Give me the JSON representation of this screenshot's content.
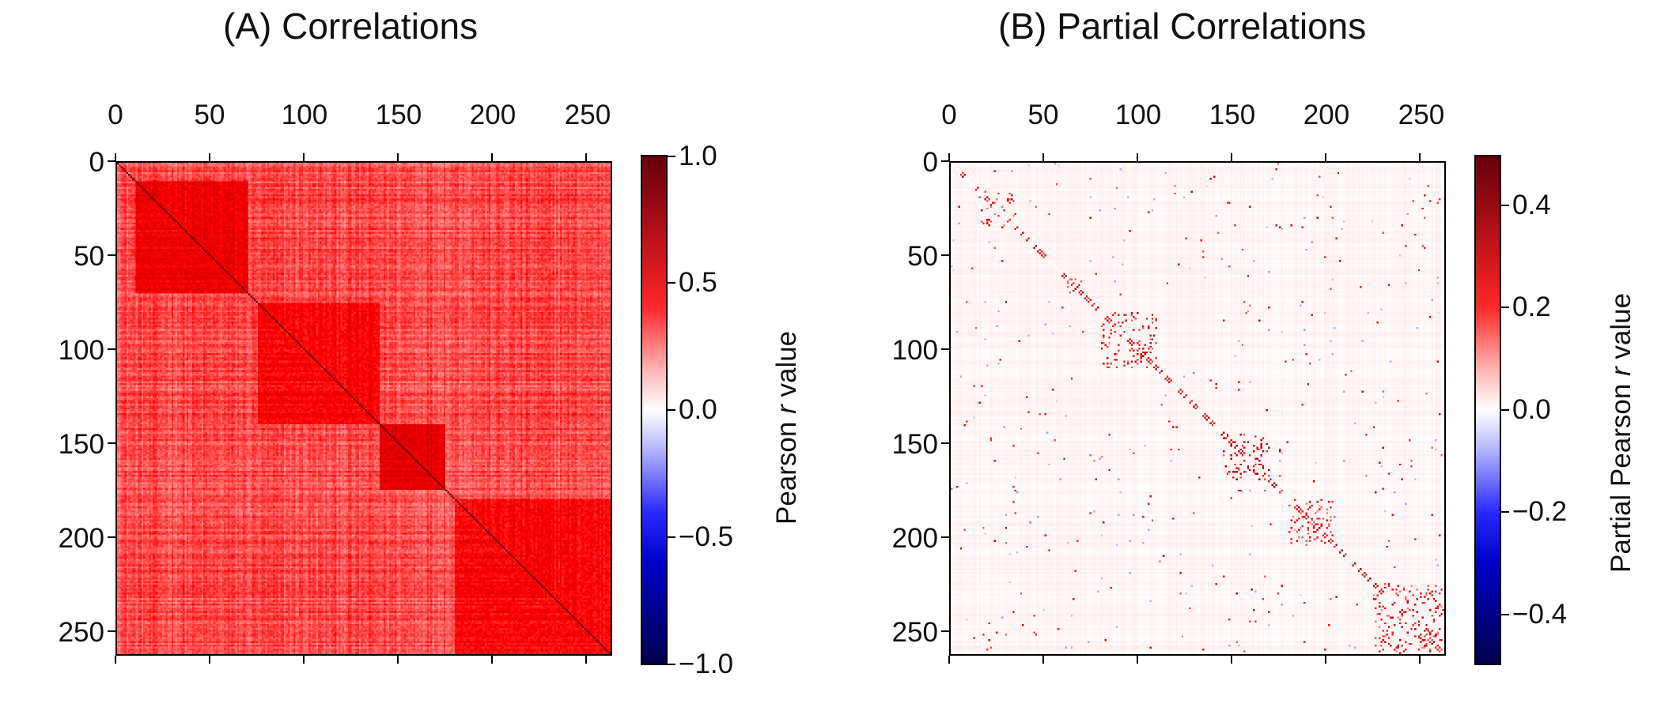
{
  "chart_data": [
    {
      "type": "heatmap",
      "title": "(A) Correlations",
      "x_ticks": [
        "0",
        "50",
        "100",
        "150",
        "200",
        "250"
      ],
      "y_ticks": [
        "0",
        "50",
        "100",
        "150",
        "200",
        "250"
      ],
      "xlim": [
        0,
        263
      ],
      "ylim": [
        263,
        0
      ],
      "colorbar": {
        "label_prefix": "Pearson ",
        "label_italic": "r",
        "label_suffix": " value",
        "range": [
          -1.0,
          1.0
        ],
        "ticks": [
          "1.0",
          "0.5",
          "0.0",
          "−0.5",
          "−1.0"
        ]
      },
      "colormap": "seismic",
      "diagonal_value": 1.0,
      "blocks": [
        {
          "range": [
            10,
            70
          ],
          "value": 0.55
        },
        {
          "range": [
            75,
            140
          ],
          "value": 0.5
        },
        {
          "range": [
            140,
            175
          ],
          "value": 0.6
        },
        {
          "range": [
            180,
            263
          ],
          "value": 0.5
        }
      ],
      "background_value": 0.35
    },
    {
      "type": "heatmap",
      "title": "(B) Partial Correlations",
      "x_ticks": [
        "0",
        "50",
        "100",
        "150",
        "200",
        "250"
      ],
      "y_ticks": [
        "0",
        "50",
        "100",
        "150",
        "200",
        "250"
      ],
      "xlim": [
        0,
        263
      ],
      "ylim": [
        263,
        0
      ],
      "colorbar": {
        "label_prefix": "Partial Pearson ",
        "label_italic": "r",
        "label_suffix": " value",
        "range": [
          -0.5,
          0.5
        ],
        "ticks": [
          "0.4",
          "0.2",
          "0.0",
          "−0.2",
          "−0.4"
        ]
      },
      "colormap": "seismic",
      "diagonal_value": 0.0,
      "blocks": [
        {
          "range": [
            15,
            35
          ],
          "value": 0.25
        },
        {
          "range": [
            60,
            70
          ],
          "value": 0.3
        },
        {
          "range": [
            80,
            110
          ],
          "value": 0.25
        },
        {
          "range": [
            145,
            170
          ],
          "value": 0.3
        },
        {
          "range": [
            180,
            205
          ],
          "value": 0.2
        },
        {
          "range": [
            225,
            263
          ],
          "value": 0.25
        }
      ],
      "background_value": 0.01
    }
  ]
}
